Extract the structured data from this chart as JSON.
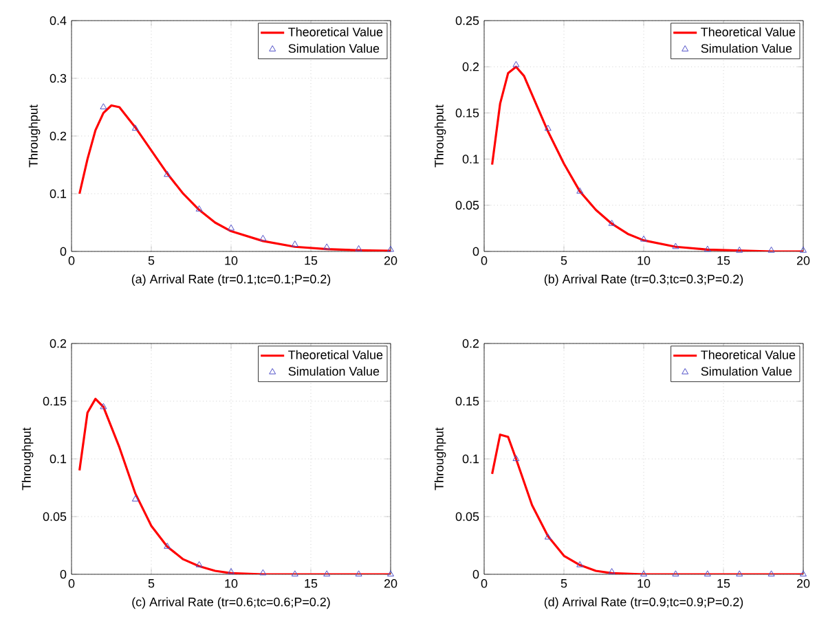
{
  "chart_data": [
    {
      "type": "line",
      "xlabel": "(a) Arrival Rate (tr=0.1;tc=0.1;P=0.2)",
      "ylabel": "Throughput",
      "xlim": [
        0,
        20
      ],
      "xticks": [
        0,
        5,
        10,
        15,
        20
      ],
      "ylim": [
        0,
        0.4
      ],
      "yticks": [
        0,
        0.1,
        0.2,
        0.3,
        0.4
      ],
      "grid": true,
      "legend": "top right",
      "series": [
        {
          "name": "Theoretical Value",
          "color": "#ff0000",
          "x": [
            0.5,
            1,
            1.5,
            2,
            2.5,
            3,
            4,
            5,
            6,
            7,
            8,
            9,
            10,
            12,
            14,
            16,
            18,
            20
          ],
          "values": [
            0.1,
            0.16,
            0.21,
            0.24,
            0.253,
            0.25,
            0.215,
            0.175,
            0.135,
            0.1,
            0.072,
            0.05,
            0.035,
            0.018,
            0.008,
            0.004,
            0.002,
            0.001
          ]
        },
        {
          "name": "Simulation Value",
          "type": "scatter",
          "marker": "triangle",
          "color": "#5050c8",
          "x": [
            2,
            4,
            6,
            8,
            10,
            12,
            14,
            16,
            18,
            20
          ],
          "values": [
            0.25,
            0.213,
            0.133,
            0.073,
            0.04,
            0.022,
            0.012,
            0.007,
            0.004,
            0.003
          ]
        }
      ]
    },
    {
      "type": "line",
      "xlabel": "(b) Arrival Rate (tr=0.3;tc=0.3;P=0.2)",
      "ylabel": "Throughput",
      "xlim": [
        0,
        20
      ],
      "xticks": [
        0,
        5,
        10,
        15,
        20
      ],
      "ylim": [
        0,
        0.25
      ],
      "yticks": [
        0,
        0.05,
        0.1,
        0.15,
        0.2,
        0.25
      ],
      "grid": true,
      "legend": "top right",
      "series": [
        {
          "name": "Theoretical Value",
          "color": "#ff0000",
          "x": [
            0.5,
            1,
            1.5,
            2,
            2.5,
            3,
            4,
            5,
            6,
            7,
            8,
            9,
            10,
            12,
            14,
            16,
            18,
            20
          ],
          "values": [
            0.094,
            0.16,
            0.193,
            0.2,
            0.19,
            0.17,
            0.13,
            0.095,
            0.065,
            0.045,
            0.03,
            0.019,
            0.012,
            0.005,
            0.002,
            0.001,
            0,
            0
          ]
        },
        {
          "name": "Simulation Value",
          "type": "scatter",
          "marker": "triangle",
          "color": "#5050c8",
          "x": [
            2,
            4,
            6,
            8,
            10,
            12,
            14,
            16,
            18,
            20
          ],
          "values": [
            0.202,
            0.133,
            0.065,
            0.03,
            0.013,
            0.005,
            0.002,
            0.001,
            0.001,
            0.001
          ]
        }
      ]
    },
    {
      "type": "line",
      "xlabel": "(c) Arrival Rate (tr=0.6;tc=0.6;P=0.2)",
      "ylabel": "Throughput",
      "xlim": [
        0,
        20
      ],
      "xticks": [
        0,
        5,
        10,
        15,
        20
      ],
      "ylim": [
        0,
        0.2
      ],
      "yticks": [
        0,
        0.05,
        0.1,
        0.15,
        0.2
      ],
      "grid": true,
      "legend": "top right",
      "series": [
        {
          "name": "Theoretical Value",
          "color": "#ff0000",
          "x": [
            0.5,
            1,
            1.5,
            2,
            3,
            4,
            5,
            6,
            7,
            8,
            9,
            10,
            12,
            14,
            16,
            18,
            20
          ],
          "values": [
            0.09,
            0.14,
            0.152,
            0.145,
            0.11,
            0.07,
            0.042,
            0.024,
            0.013,
            0.007,
            0.003,
            0.001,
            0,
            0,
            0,
            0,
            0
          ]
        },
        {
          "name": "Simulation Value",
          "type": "scatter",
          "marker": "triangle",
          "color": "#5050c8",
          "x": [
            2,
            4,
            6,
            8,
            10,
            12,
            14,
            16,
            18,
            20
          ],
          "values": [
            0.145,
            0.065,
            0.024,
            0.008,
            0.002,
            0.001,
            0,
            0,
            0,
            0
          ]
        }
      ]
    },
    {
      "type": "line",
      "xlabel": "(d) Arrival Rate (tr=0.9;tc=0.9;P=0.2)",
      "ylabel": "Throughput",
      "xlim": [
        0,
        20
      ],
      "xticks": [
        0,
        5,
        10,
        15,
        20
      ],
      "ylim": [
        0,
        0.2
      ],
      "yticks": [
        0,
        0.05,
        0.1,
        0.15,
        0.2
      ],
      "grid": true,
      "legend": "top right",
      "series": [
        {
          "name": "Theoretical Value",
          "color": "#ff0000",
          "x": [
            0.5,
            1,
            1.5,
            2,
            3,
            4,
            5,
            6,
            7,
            8,
            10,
            12,
            14,
            16,
            18,
            20
          ],
          "values": [
            0.087,
            0.121,
            0.119,
            0.1,
            0.06,
            0.033,
            0.016,
            0.008,
            0.003,
            0.001,
            0,
            0,
            0,
            0,
            0,
            0
          ]
        },
        {
          "name": "Simulation Value",
          "type": "scatter",
          "marker": "triangle",
          "color": "#5050c8",
          "x": [
            2,
            4,
            6,
            8,
            10,
            12,
            14,
            16,
            18,
            20
          ],
          "values": [
            0.1,
            0.032,
            0.008,
            0.002,
            0,
            0,
            0,
            0,
            0,
            0
          ]
        }
      ]
    }
  ]
}
